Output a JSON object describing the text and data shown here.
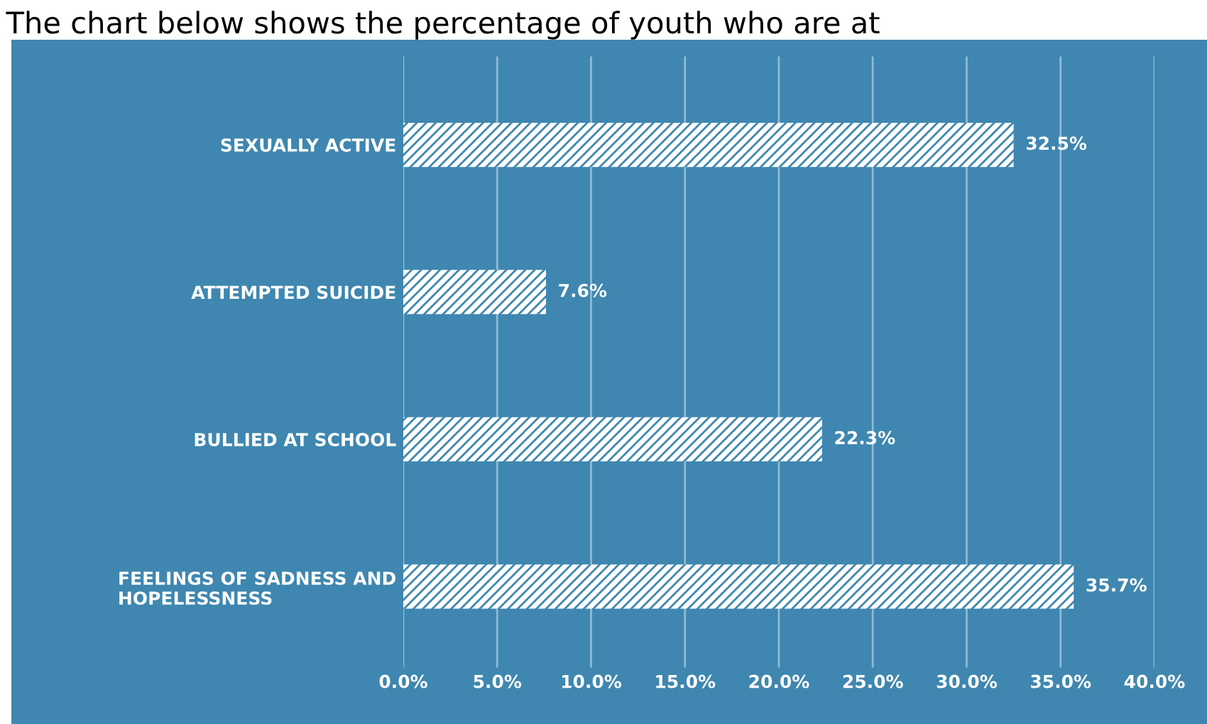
{
  "chart_data": {
    "type": "bar",
    "orientation": "horizontal",
    "title": "The chart below shows the percentage of youth who are at",
    "categories": [
      "SEXUALLY ACTIVE",
      "ATTEMPTED SUICIDE",
      "BULLIED AT SCHOOL",
      "FEELINGS OF SADNESS AND\nHOPELESSNESS"
    ],
    "values": [
      32.5,
      7.6,
      22.3,
      35.7
    ],
    "value_labels": [
      "32.5%",
      "7.6%",
      "22.3%",
      "35.7%"
    ],
    "color": "#ffffff",
    "xlim": [
      0,
      40
    ],
    "xticks": [
      {
        "value": 0,
        "label": "0.0%"
      },
      {
        "value": 5,
        "label": "5.0%"
      },
      {
        "value": 10,
        "label": "10.0%"
      },
      {
        "value": 15,
        "label": "15.0%"
      },
      {
        "value": 20,
        "label": "20.0%"
      },
      {
        "value": 25,
        "label": "25.0%"
      },
      {
        "value": 30,
        "label": "30.0%"
      },
      {
        "value": 35,
        "label": "35.0%"
      },
      {
        "value": 40,
        "label": "40.0%"
      }
    ],
    "grid": "x",
    "legend": false
  }
}
